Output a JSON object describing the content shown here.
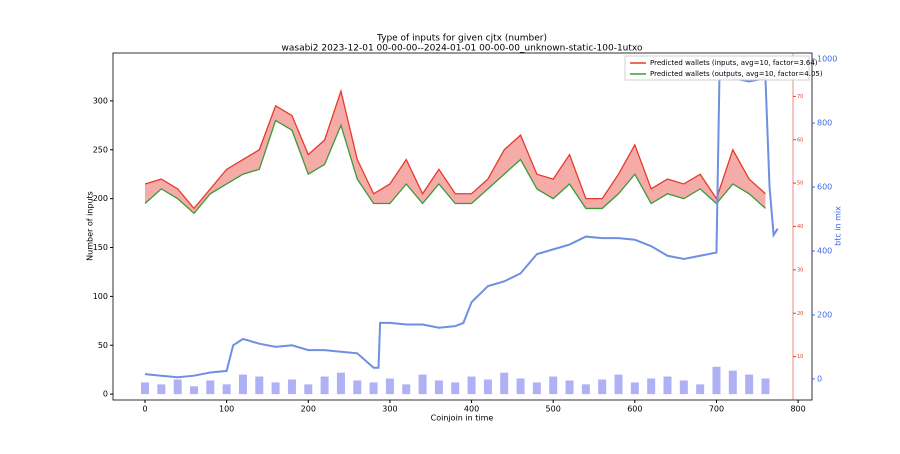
{
  "chart_data": {
    "type": "line",
    "title": "Type of inputs for given cjtx (number)",
    "subtitle": "wasabi2 2023-12-01 00-00-00--2024-01-01 00-00-00_unknown-static-100-1utxo",
    "x_label": "Coinjoin in time",
    "y_label": "Number of inputs",
    "y2_label": "btc in mix",
    "xlim": [
      -39.2,
      817
    ],
    "xticks": [
      0,
      100,
      200,
      300,
      400,
      500,
      600,
      700,
      800
    ],
    "ylim": [
      -6,
      349
    ],
    "yticks": [
      0,
      50,
      100,
      150,
      200,
      250,
      300
    ],
    "y2lim": [
      -66,
      1019
    ],
    "y2ticks": [
      0,
      200,
      400,
      600,
      800,
      1000
    ],
    "y3lim": [
      0,
      80
    ],
    "y3ticks": [
      10,
      20,
      30,
      40,
      50,
      60,
      70
    ],
    "y3color": "#e8392b",
    "legend": "upper right",
    "fill_between": "#f4a3a0",
    "x": [
      0,
      20,
      40,
      60,
      80,
      100,
      120,
      140,
      160,
      180,
      200,
      220,
      240,
      260,
      280,
      300,
      320,
      340,
      360,
      380,
      400,
      420,
      440,
      460,
      480,
      500,
      520,
      540,
      560,
      580,
      600,
      620,
      640,
      660,
      680,
      700,
      720,
      740,
      760
    ],
    "series": [
      {
        "name": "Predicted wallets (inputs, avg=10, factor=3.64)",
        "color": "#e8392b",
        "values": [
          215,
          220,
          210,
          190,
          210,
          230,
          240,
          250,
          295,
          285,
          245,
          260,
          310,
          240,
          205,
          215,
          240,
          205,
          230,
          205,
          205,
          220,
          250,
          265,
          225,
          220,
          245,
          200,
          200,
          225,
          255,
          210,
          220,
          215,
          225,
          200,
          250,
          220,
          205
        ]
      },
      {
        "name": "Predicted wallets (outputs, avg=10, factor=4.05)",
        "color": "#3a9a3a",
        "values": [
          195,
          210,
          200,
          185,
          205,
          215,
          225,
          230,
          280,
          270,
          225,
          235,
          275,
          220,
          195,
          195,
          215,
          195,
          215,
          195,
          195,
          210,
          225,
          240,
          210,
          200,
          215,
          190,
          190,
          205,
          225,
          195,
          205,
          200,
          210,
          195,
          215,
          205,
          190
        ]
      }
    ],
    "bars": {
      "color": "#9c9cf2",
      "values": [
        12,
        10,
        15,
        8,
        14,
        10,
        20,
        18,
        12,
        15,
        10,
        18,
        22,
        14,
        12,
        16,
        10,
        20,
        14,
        12,
        18,
        15,
        22,
        16,
        12,
        18,
        14,
        10,
        15,
        20,
        12,
        16,
        18,
        14,
        10,
        28,
        24,
        20,
        16
      ]
    },
    "btc": {
      "color": "#6f8fe0",
      "axis": "y2",
      "x": [
        0,
        20,
        40,
        60,
        80,
        100,
        108,
        120,
        140,
        160,
        180,
        200,
        220,
        240,
        260,
        280,
        286,
        288,
        300,
        320,
        340,
        360,
        380,
        390,
        400,
        420,
        440,
        460,
        480,
        500,
        520,
        540,
        560,
        580,
        600,
        620,
        640,
        660,
        680,
        700,
        704,
        720,
        740,
        760,
        765,
        770,
        775
      ],
      "values": [
        15,
        10,
        5,
        10,
        20,
        25,
        105,
        125,
        110,
        100,
        105,
        90,
        90,
        85,
        80,
        35,
        35,
        175,
        175,
        170,
        170,
        160,
        165,
        175,
        240,
        290,
        305,
        330,
        390,
        405,
        420,
        445,
        440,
        440,
        435,
        415,
        385,
        375,
        385,
        395,
        1000,
        940,
        930,
        940,
        600,
        450,
        470
      ]
    }
  }
}
